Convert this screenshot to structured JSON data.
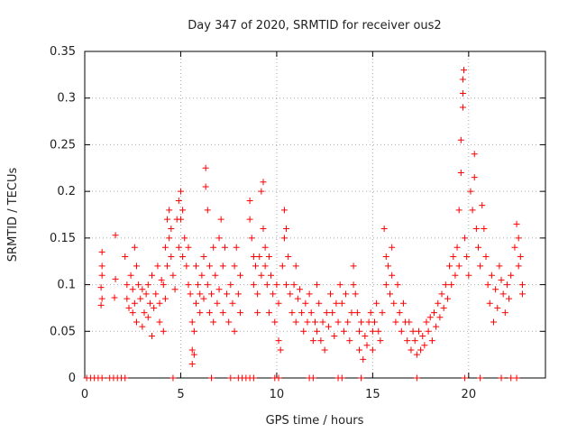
{
  "chart_data": {
    "type": "scatter",
    "title": "Day 347 of 2020, SRMTID for receiver ous2",
    "xlabel": "GPS time / hours",
    "ylabel": "SRMTID / TECUs",
    "xlim": [
      0,
      24
    ],
    "ylim": [
      0,
      0.35
    ],
    "xticks": [
      0,
      5,
      10,
      15,
      20
    ],
    "yticks": [
      0,
      0.05,
      0.1,
      0.15,
      0.2,
      0.25,
      0.3,
      0.35
    ],
    "xtick_labels": [
      "0",
      "5",
      "10",
      "15",
      "20"
    ],
    "ytick_labels": [
      "0",
      "0.05",
      "0.1",
      "0.15",
      "0.2",
      "0.25",
      "0.3",
      "0.35"
    ],
    "grid": true,
    "marker": "+",
    "color": "#ff0000",
    "series": [
      {
        "name": "SRMTID",
        "points": [
          [
            0.1,
            0
          ],
          [
            0.3,
            0
          ],
          [
            0.5,
            0
          ],
          [
            0.7,
            0
          ],
          [
            0.9,
            0
          ],
          [
            1.3,
            0
          ],
          [
            1.5,
            0
          ],
          [
            1.7,
            0
          ],
          [
            1.9,
            0
          ],
          [
            2.1,
            0
          ],
          [
            4.6,
            0
          ],
          [
            6.6,
            0
          ],
          [
            7.6,
            0
          ],
          [
            8.0,
            0
          ],
          [
            8.2,
            0
          ],
          [
            8.4,
            0
          ],
          [
            8.6,
            0
          ],
          [
            8.8,
            0
          ],
          [
            9.9,
            0
          ],
          [
            10.1,
            0
          ],
          [
            11.7,
            0
          ],
          [
            11.9,
            0
          ],
          [
            13.2,
            0
          ],
          [
            13.4,
            0
          ],
          [
            14.4,
            0
          ],
          [
            17.3,
            0
          ],
          [
            19.8,
            0
          ],
          [
            20.6,
            0
          ],
          [
            21.7,
            0
          ],
          [
            22.2,
            0
          ],
          [
            22.5,
            0
          ],
          [
            0.9,
            0.135
          ],
          [
            0.9,
            0.12
          ],
          [
            0.9,
            0.11
          ],
          [
            0.85,
            0.097
          ],
          [
            0.9,
            0.085
          ],
          [
            0.85,
            0.078
          ],
          [
            1.6,
            0.153
          ],
          [
            1.6,
            0.106
          ],
          [
            1.55,
            0.086
          ],
          [
            2.1,
            0.13
          ],
          [
            2.2,
            0.1
          ],
          [
            2.2,
            0.085
          ],
          [
            2.3,
            0.075
          ],
          [
            2.4,
            0.11
          ],
          [
            2.5,
            0.095
          ],
          [
            2.5,
            0.07
          ],
          [
            2.6,
            0.14
          ],
          [
            2.6,
            0.08
          ],
          [
            2.7,
            0.12
          ],
          [
            2.7,
            0.06
          ],
          [
            2.8,
            0.1
          ],
          [
            2.9,
            0.085
          ],
          [
            3.0,
            0.055
          ],
          [
            3.0,
            0.095
          ],
          [
            3.1,
            0.07
          ],
          [
            3.2,
            0.09
          ],
          [
            3.3,
            0.1
          ],
          [
            3.3,
            0.065
          ],
          [
            3.4,
            0.08
          ],
          [
            3.5,
            0.045
          ],
          [
            3.5,
            0.11
          ],
          [
            3.6,
            0.075
          ],
          [
            3.7,
            0.09
          ],
          [
            3.8,
            0.12
          ],
          [
            3.9,
            0.08
          ],
          [
            3.9,
            0.06
          ],
          [
            4.0,
            0.105
          ],
          [
            4.1,
            0.1
          ],
          [
            4.1,
            0.05
          ],
          [
            4.2,
            0.085
          ],
          [
            4.2,
            0.14
          ],
          [
            4.3,
            0.12
          ],
          [
            4.3,
            0.17
          ],
          [
            4.4,
            0.15
          ],
          [
            4.4,
            0.18
          ],
          [
            4.5,
            0.13
          ],
          [
            4.5,
            0.16
          ],
          [
            4.6,
            0.11
          ],
          [
            4.7,
            0.095
          ],
          [
            4.8,
            0.17
          ],
          [
            4.9,
            0.19
          ],
          [
            4.9,
            0.14
          ],
          [
            5.0,
            0.2
          ],
          [
            5.0,
            0.17
          ],
          [
            5.1,
            0.18
          ],
          [
            5.1,
            0.13
          ],
          [
            5.2,
            0.15
          ],
          [
            5.3,
            0.12
          ],
          [
            5.4,
            0.14
          ],
          [
            5.4,
            0.1
          ],
          [
            5.5,
            0.09
          ],
          [
            5.6,
            0.06
          ],
          [
            5.6,
            0.03
          ],
          [
            5.6,
            0.015
          ],
          [
            5.7,
            0.05
          ],
          [
            5.7,
            0.025
          ],
          [
            5.8,
            0.08
          ],
          [
            5.8,
            0.12
          ],
          [
            5.9,
            0.1
          ],
          [
            6.0,
            0.09
          ],
          [
            6.0,
            0.07
          ],
          [
            6.1,
            0.11
          ],
          [
            6.2,
            0.13
          ],
          [
            6.2,
            0.085
          ],
          [
            6.3,
            0.225
          ],
          [
            6.3,
            0.205
          ],
          [
            6.4,
            0.18
          ],
          [
            6.4,
            0.1
          ],
          [
            6.5,
            0.07
          ],
          [
            6.5,
            0.12
          ],
          [
            6.6,
            0.09
          ],
          [
            6.7,
            0.06
          ],
          [
            6.7,
            0.14
          ],
          [
            6.8,
            0.11
          ],
          [
            6.9,
            0.08
          ],
          [
            7.0,
            0.15
          ],
          [
            7.0,
            0.095
          ],
          [
            7.1,
            0.17
          ],
          [
            7.2,
            0.12
          ],
          [
            7.2,
            0.07
          ],
          [
            7.3,
            0.14
          ],
          [
            7.4,
            0.09
          ],
          [
            7.5,
            0.06
          ],
          [
            7.6,
            0.1
          ],
          [
            7.7,
            0.08
          ],
          [
            7.8,
            0.05
          ],
          [
            7.8,
            0.12
          ],
          [
            7.9,
            0.14
          ],
          [
            8.0,
            0.09
          ],
          [
            8.1,
            0.11
          ],
          [
            8.1,
            0.07
          ],
          [
            8.6,
            0.19
          ],
          [
            8.6,
            0.17
          ],
          [
            8.7,
            0.15
          ],
          [
            8.8,
            0.13
          ],
          [
            8.8,
            0.1
          ],
          [
            8.9,
            0.12
          ],
          [
            9.0,
            0.09
          ],
          [
            9.0,
            0.07
          ],
          [
            9.1,
            0.13
          ],
          [
            9.2,
            0.11
          ],
          [
            9.2,
            0.2
          ],
          [
            9.3,
            0.21
          ],
          [
            9.3,
            0.16
          ],
          [
            9.4,
            0.14
          ],
          [
            9.4,
            0.12
          ],
          [
            9.5,
            0.1
          ],
          [
            9.6,
            0.13
          ],
          [
            9.6,
            0.07
          ],
          [
            9.7,
            0.11
          ],
          [
            9.8,
            0.09
          ],
          [
            9.9,
            0.06
          ],
          [
            10.0,
            0.1
          ],
          [
            10.1,
            0.08
          ],
          [
            10.1,
            0.04
          ],
          [
            10.2,
            0.03
          ],
          [
            10.3,
            0.12
          ],
          [
            10.4,
            0.15
          ],
          [
            10.4,
            0.18
          ],
          [
            10.5,
            0.16
          ],
          [
            10.5,
            0.1
          ],
          [
            10.6,
            0.13
          ],
          [
            10.7,
            0.09
          ],
          [
            10.8,
            0.07
          ],
          [
            10.9,
            0.1
          ],
          [
            11.0,
            0.12
          ],
          [
            11.0,
            0.06
          ],
          [
            11.1,
            0.085
          ],
          [
            11.2,
            0.095
          ],
          [
            11.3,
            0.07
          ],
          [
            11.4,
            0.05
          ],
          [
            11.5,
            0.08
          ],
          [
            11.6,
            0.06
          ],
          [
            11.7,
            0.09
          ],
          [
            11.8,
            0.07
          ],
          [
            11.9,
            0.04
          ],
          [
            12.0,
            0.06
          ],
          [
            12.1,
            0.1
          ],
          [
            12.1,
            0.05
          ],
          [
            12.2,
            0.08
          ],
          [
            12.3,
            0.04
          ],
          [
            12.4,
            0.06
          ],
          [
            12.5,
            0.03
          ],
          [
            12.6,
            0.07
          ],
          [
            12.7,
            0.055
          ],
          [
            12.8,
            0.09
          ],
          [
            12.9,
            0.07
          ],
          [
            13.0,
            0.045
          ],
          [
            13.1,
            0.08
          ],
          [
            13.2,
            0.06
          ],
          [
            13.3,
            0.1
          ],
          [
            13.4,
            0.08
          ],
          [
            13.5,
            0.05
          ],
          [
            13.6,
            0.09
          ],
          [
            13.7,
            0.06
          ],
          [
            13.8,
            0.04
          ],
          [
            13.9,
            0.07
          ],
          [
            14.0,
            0.1
          ],
          [
            14.0,
            0.12
          ],
          [
            14.1,
            0.09
          ],
          [
            14.2,
            0.07
          ],
          [
            14.3,
            0.05
          ],
          [
            14.3,
            0.03
          ],
          [
            14.4,
            0.06
          ],
          [
            14.5,
            0.02
          ],
          [
            14.6,
            0.045
          ],
          [
            14.7,
            0.035
          ],
          [
            14.8,
            0.06
          ],
          [
            14.9,
            0.07
          ],
          [
            15.0,
            0.05
          ],
          [
            15.0,
            0.03
          ],
          [
            15.1,
            0.06
          ],
          [
            15.2,
            0.08
          ],
          [
            15.3,
            0.05
          ],
          [
            15.4,
            0.04
          ],
          [
            15.5,
            0.07
          ],
          [
            15.6,
            0.16
          ],
          [
            15.7,
            0.13
          ],
          [
            15.7,
            0.1
          ],
          [
            15.8,
            0.12
          ],
          [
            15.9,
            0.09
          ],
          [
            16.0,
            0.14
          ],
          [
            16.0,
            0.11
          ],
          [
            16.1,
            0.08
          ],
          [
            16.2,
            0.06
          ],
          [
            16.3,
            0.1
          ],
          [
            16.4,
            0.07
          ],
          [
            16.5,
            0.05
          ],
          [
            16.6,
            0.08
          ],
          [
            16.7,
            0.06
          ],
          [
            16.8,
            0.04
          ],
          [
            16.9,
            0.06
          ],
          [
            17.0,
            0.03
          ],
          [
            17.1,
            0.05
          ],
          [
            17.2,
            0.04
          ],
          [
            17.3,
            0.025
          ],
          [
            17.4,
            0.05
          ],
          [
            17.5,
            0.03
          ],
          [
            17.6,
            0.045
          ],
          [
            17.7,
            0.035
          ],
          [
            17.8,
            0.06
          ],
          [
            17.9,
            0.05
          ],
          [
            18.0,
            0.065
          ],
          [
            18.1,
            0.04
          ],
          [
            18.2,
            0.07
          ],
          [
            18.3,
            0.055
          ],
          [
            18.4,
            0.08
          ],
          [
            18.5,
            0.065
          ],
          [
            18.6,
            0.09
          ],
          [
            18.7,
            0.075
          ],
          [
            18.8,
            0.1
          ],
          [
            18.9,
            0.085
          ],
          [
            19.0,
            0.12
          ],
          [
            19.1,
            0.1
          ],
          [
            19.2,
            0.13
          ],
          [
            19.3,
            0.11
          ],
          [
            19.4,
            0.14
          ],
          [
            19.5,
            0.12
          ],
          [
            19.5,
            0.18
          ],
          [
            19.6,
            0.22
          ],
          [
            19.6,
            0.255
          ],
          [
            19.7,
            0.29
          ],
          [
            19.7,
            0.305
          ],
          [
            19.7,
            0.32
          ],
          [
            19.75,
            0.33
          ],
          [
            19.8,
            0.15
          ],
          [
            19.9,
            0.13
          ],
          [
            20.0,
            0.11
          ],
          [
            20.1,
            0.2
          ],
          [
            20.2,
            0.18
          ],
          [
            20.3,
            0.24
          ],
          [
            20.3,
            0.215
          ],
          [
            20.4,
            0.16
          ],
          [
            20.5,
            0.14
          ],
          [
            20.6,
            0.12
          ],
          [
            20.7,
            0.185
          ],
          [
            20.8,
            0.16
          ],
          [
            20.9,
            0.13
          ],
          [
            21.0,
            0.1
          ],
          [
            21.1,
            0.08
          ],
          [
            21.2,
            0.11
          ],
          [
            21.3,
            0.06
          ],
          [
            21.4,
            0.095
          ],
          [
            21.5,
            0.075
          ],
          [
            21.6,
            0.12
          ],
          [
            21.7,
            0.105
          ],
          [
            21.8,
            0.09
          ],
          [
            21.9,
            0.07
          ],
          [
            22.0,
            0.1
          ],
          [
            22.1,
            0.085
          ],
          [
            22.2,
            0.11
          ],
          [
            22.4,
            0.14
          ],
          [
            22.5,
            0.165
          ],
          [
            22.6,
            0.15
          ],
          [
            22.6,
            0.12
          ],
          [
            22.7,
            0.13
          ],
          [
            22.8,
            0.1
          ],
          [
            22.8,
            0.09
          ]
        ]
      }
    ]
  }
}
